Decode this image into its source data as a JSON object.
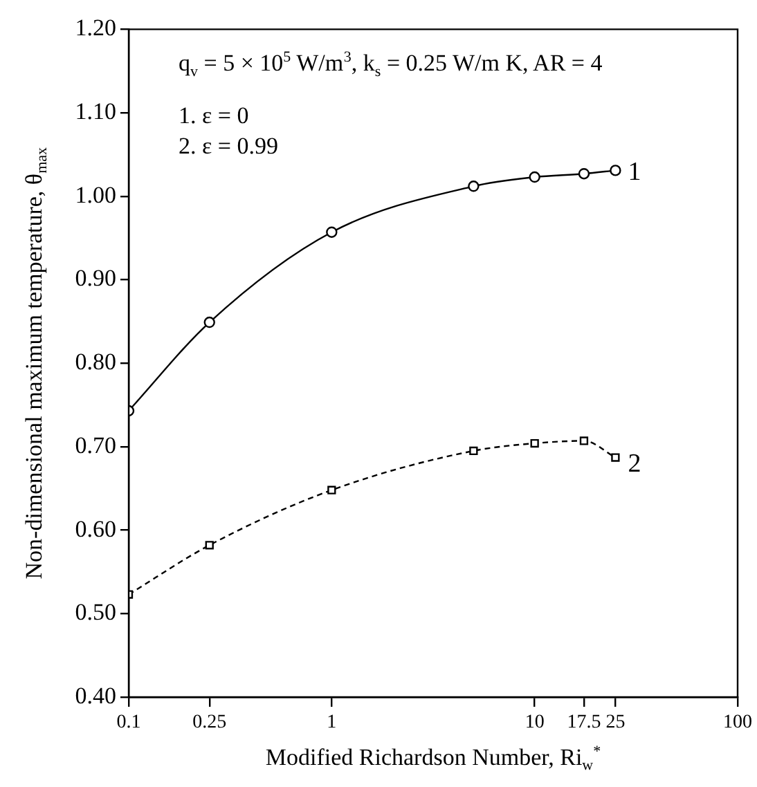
{
  "chart_data": {
    "type": "line",
    "xlabel": "Modified Richardson Number, Ri$_{w}$$^{*}$",
    "ylabel": "Non-dimensional maximum temperature, θ$_{max}$",
    "annotations": [
      "q$_{v}$ = 5 × 10$^{5}$ W/m$^{3}$, k$_{s}$ = 0.25 W/m K, AR = 4",
      "1. ε = 0",
      "2. ε = 0.99"
    ],
    "x": [
      0.1,
      0.25,
      1,
      5,
      10,
      17.5,
      25
    ],
    "series": [
      {
        "name": "1",
        "color": "#000000",
        "marker": "circle",
        "line_style": "solid",
        "values": [
          0.743,
          0.849,
          0.957,
          1.012,
          1.023,
          1.027,
          1.031
        ]
      },
      {
        "name": "2",
        "color": "#000000",
        "marker": "square",
        "line_style": "dashed",
        "values": [
          0.523,
          0.582,
          0.648,
          0.695,
          0.704,
          0.707,
          0.687
        ]
      }
    ],
    "log": "x",
    "xlim": [
      0.1,
      100
    ],
    "xticks": [
      0.1,
      0.25,
      1,
      10,
      17.5,
      25,
      100
    ],
    "ylim": [
      0.4,
      1.2
    ],
    "yticks": [
      {
        "value": 0.4,
        "label": "0.40"
      },
      {
        "value": 0.5,
        "label": "0.50"
      },
      {
        "value": 0.6,
        "label": "0.60"
      },
      {
        "value": 0.7,
        "label": "0.70"
      },
      {
        "value": 0.8,
        "label": "0.80"
      },
      {
        "value": 0.9,
        "label": "0.90"
      },
      {
        "value": 1.0,
        "label": "1.00"
      },
      {
        "value": 1.1,
        "label": "1.10"
      },
      {
        "value": 1.2,
        "label": "1.20"
      }
    ],
    "grid": false,
    "legend": false
  }
}
